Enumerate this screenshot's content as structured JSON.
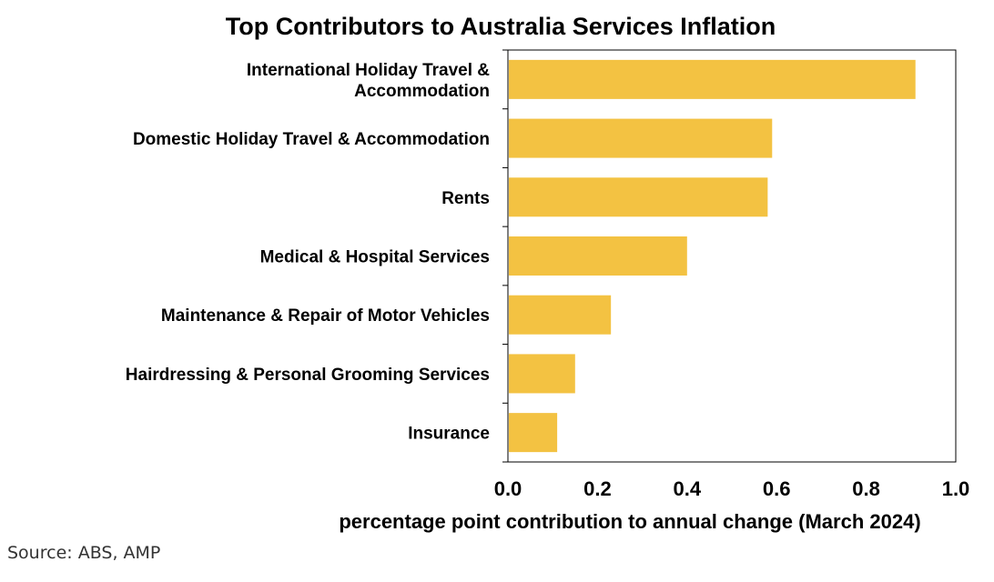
{
  "chart_data": {
    "type": "bar",
    "orientation": "horizontal",
    "title": "Top Contributors to Australia Services Inflation",
    "categories": [
      [
        "International Holiday Travel &",
        "Accommodation"
      ],
      [
        "Domestic Holiday Travel & Accommodation"
      ],
      [
        "Rents"
      ],
      [
        "Medical & Hospital Services"
      ],
      [
        "Maintenance & Repair of Motor Vehicles"
      ],
      [
        "Hairdressing & Personal Grooming Services"
      ],
      [
        "Insurance"
      ]
    ],
    "values": [
      0.91,
      0.59,
      0.58,
      0.4,
      0.23,
      0.15,
      0.11
    ],
    "xlim": [
      0,
      1.0
    ],
    "xticks": [
      "0.0",
      "0.2",
      "0.4",
      "0.6",
      "0.8",
      "1.0"
    ],
    "xtick_values": [
      0,
      0.2,
      0.4,
      0.6,
      0.8,
      1.0
    ],
    "xlabel": "percentage point contribution to annual change (March 2024)",
    "ylabel": "",
    "grid": false,
    "bar_color": "#F3C242"
  },
  "source": "Source: ABS, AMP"
}
